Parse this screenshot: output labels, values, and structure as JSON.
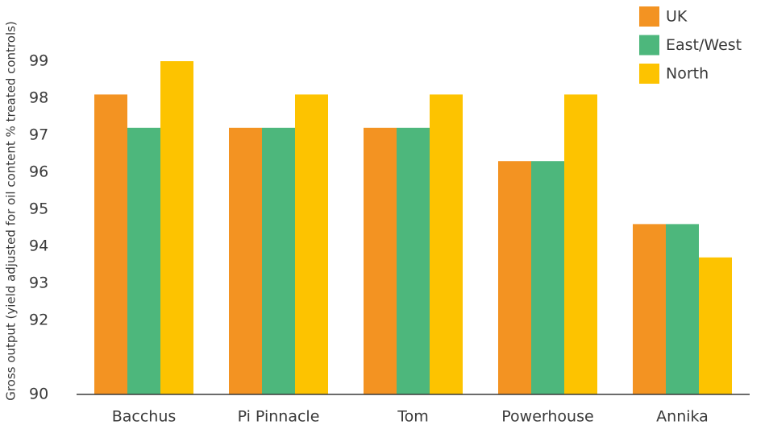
{
  "chart_data": {
    "type": "bar",
    "y_axis_label": "Gross output (yield adjusted for oil content % treated controls)",
    "categories": [
      "Bacchus",
      "Pi Pinnacle",
      "Tom",
      "Powerhouse",
      "Annika"
    ],
    "series": [
      {
        "name": "UK",
        "color": "#f39322",
        "values": [
          98.1,
          97.2,
          97.2,
          96.3,
          94.6
        ]
      },
      {
        "name": "East/West",
        "color": "#4db77c",
        "values": [
          97.2,
          97.2,
          97.2,
          96.3,
          94.6
        ]
      },
      {
        "name": "North",
        "color": "#fdc300",
        "values": [
          99,
          98.1,
          98.1,
          98.1,
          93.7
        ]
      }
    ],
    "ylim": [
      90,
      100
    ],
    "yticks": [
      90,
      92,
      93,
      94,
      95,
      96,
      97,
      98,
      99
    ],
    "legend": "top-right",
    "grid": false
  }
}
